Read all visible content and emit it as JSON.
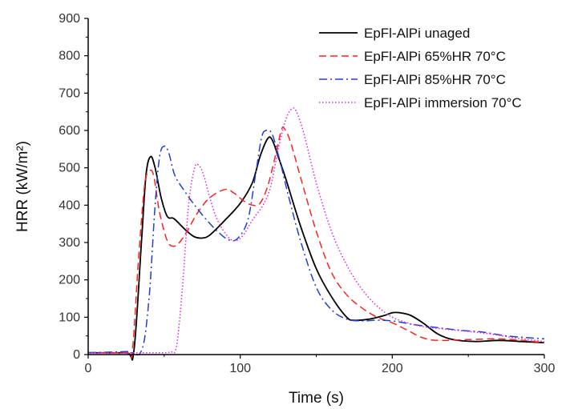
{
  "chart_data": {
    "type": "line",
    "title": "",
    "xlabel": "Time (s)",
    "ylabel": "HRR (kW/m²)",
    "xlim": [
      0,
      300
    ],
    "ylim": [
      0,
      900
    ],
    "x_ticks": [
      0,
      100,
      200,
      300
    ],
    "y_ticks": [
      0,
      100,
      200,
      300,
      400,
      500,
      600,
      700,
      800,
      900
    ],
    "x_tick_labels": [
      "0",
      "100",
      "200",
      "300"
    ],
    "y_tick_labels": [
      "0",
      "100",
      "200",
      "300",
      "400",
      "500",
      "600",
      "700",
      "800",
      "900"
    ],
    "grid": false,
    "legend_position": "top-right",
    "series": [
      {
        "name": "EpFl-AlPi unaged",
        "color": "#000000",
        "dash": "solid",
        "points": [
          [
            0,
            5
          ],
          [
            25,
            5
          ],
          [
            30,
            8
          ],
          [
            35,
            300
          ],
          [
            38,
            480
          ],
          [
            41,
            530
          ],
          [
            44,
            500
          ],
          [
            48,
            420
          ],
          [
            52,
            370
          ],
          [
            56,
            365
          ],
          [
            60,
            350
          ],
          [
            65,
            330
          ],
          [
            70,
            315
          ],
          [
            75,
            312
          ],
          [
            80,
            320
          ],
          [
            90,
            360
          ],
          [
            100,
            405
          ],
          [
            108,
            460
          ],
          [
            113,
            530
          ],
          [
            118,
            578
          ],
          [
            121,
            575
          ],
          [
            125,
            530
          ],
          [
            130,
            470
          ],
          [
            140,
            340
          ],
          [
            150,
            230
          ],
          [
            160,
            155
          ],
          [
            170,
            100
          ],
          [
            175,
            92
          ],
          [
            185,
            95
          ],
          [
            195,
            105
          ],
          [
            200,
            112
          ],
          [
            205,
            112
          ],
          [
            212,
            105
          ],
          [
            220,
            85
          ],
          [
            230,
            55
          ],
          [
            240,
            40
          ],
          [
            255,
            35
          ],
          [
            270,
            38
          ],
          [
            285,
            35
          ],
          [
            300,
            32
          ]
        ]
      },
      {
        "name": "EpFl-AlPi 65%HR 70°C",
        "color": "#ff2020",
        "dash": "dashed",
        "points": [
          [
            0,
            5
          ],
          [
            25,
            5
          ],
          [
            29,
            10
          ],
          [
            33,
            250
          ],
          [
            37,
            450
          ],
          [
            40,
            490
          ],
          [
            43,
            480
          ],
          [
            47,
            380
          ],
          [
            52,
            305
          ],
          [
            56,
            290
          ],
          [
            60,
            300
          ],
          [
            65,
            330
          ],
          [
            72,
            380
          ],
          [
            80,
            420
          ],
          [
            90,
            442
          ],
          [
            96,
            432
          ],
          [
            102,
            412
          ],
          [
            108,
            400
          ],
          [
            113,
            405
          ],
          [
            118,
            450
          ],
          [
            123,
            530
          ],
          [
            127,
            600
          ],
          [
            129,
            605
          ],
          [
            133,
            570
          ],
          [
            140,
            470
          ],
          [
            150,
            330
          ],
          [
            160,
            220
          ],
          [
            170,
            160
          ],
          [
            180,
            125
          ],
          [
            190,
            100
          ],
          [
            200,
            85
          ],
          [
            210,
            65
          ],
          [
            220,
            45
          ],
          [
            230,
            38
          ],
          [
            250,
            40
          ],
          [
            270,
            42
          ],
          [
            285,
            38
          ],
          [
            300,
            32
          ]
        ]
      },
      {
        "name": "EpFl-AlPi 85%HR 70°C",
        "color": "#1f3fd8",
        "dash": "dashdot",
        "points": [
          [
            0,
            5
          ],
          [
            25,
            8
          ],
          [
            35,
            10
          ],
          [
            40,
            150
          ],
          [
            44,
            400
          ],
          [
            47,
            530
          ],
          [
            50,
            558
          ],
          [
            53,
            540
          ],
          [
            57,
            480
          ],
          [
            63,
            440
          ],
          [
            70,
            400
          ],
          [
            78,
            360
          ],
          [
            85,
            330
          ],
          [
            92,
            308
          ],
          [
            98,
            310
          ],
          [
            105,
            360
          ],
          [
            110,
            480
          ],
          [
            114,
            580
          ],
          [
            117,
            600
          ],
          [
            121,
            590
          ],
          [
            126,
            520
          ],
          [
            132,
            420
          ],
          [
            140,
            300
          ],
          [
            150,
            180
          ],
          [
            160,
            120
          ],
          [
            170,
            95
          ],
          [
            180,
            90
          ],
          [
            190,
            92
          ],
          [
            200,
            90
          ],
          [
            215,
            80
          ],
          [
            230,
            72
          ],
          [
            245,
            65
          ],
          [
            260,
            60
          ],
          [
            275,
            50
          ],
          [
            290,
            45
          ],
          [
            300,
            42
          ]
        ]
      },
      {
        "name": "EpFl-AlPi immersion 70°C",
        "color": "#e81ee0",
        "dash": "dotted",
        "points": [
          [
            0,
            5
          ],
          [
            30,
            5
          ],
          [
            50,
            5
          ],
          [
            54,
            8
          ],
          [
            58,
            20
          ],
          [
            62,
            180
          ],
          [
            66,
            400
          ],
          [
            70,
            500
          ],
          [
            73,
            505
          ],
          [
            76,
            480
          ],
          [
            80,
            420
          ],
          [
            85,
            360
          ],
          [
            92,
            315
          ],
          [
            97,
            305
          ],
          [
            102,
            320
          ],
          [
            108,
            360
          ],
          [
            115,
            400
          ],
          [
            120,
            450
          ],
          [
            125,
            550
          ],
          [
            130,
            630
          ],
          [
            134,
            658
          ],
          [
            137,
            650
          ],
          [
            142,
            590
          ],
          [
            150,
            460
          ],
          [
            160,
            330
          ],
          [
            170,
            240
          ],
          [
            180,
            175
          ],
          [
            190,
            130
          ],
          [
            200,
            100
          ],
          [
            210,
            85
          ],
          [
            220,
            75
          ],
          [
            235,
            68
          ],
          [
            250,
            62
          ],
          [
            265,
            55
          ],
          [
            280,
            45
          ],
          [
            300,
            35
          ]
        ]
      }
    ]
  }
}
